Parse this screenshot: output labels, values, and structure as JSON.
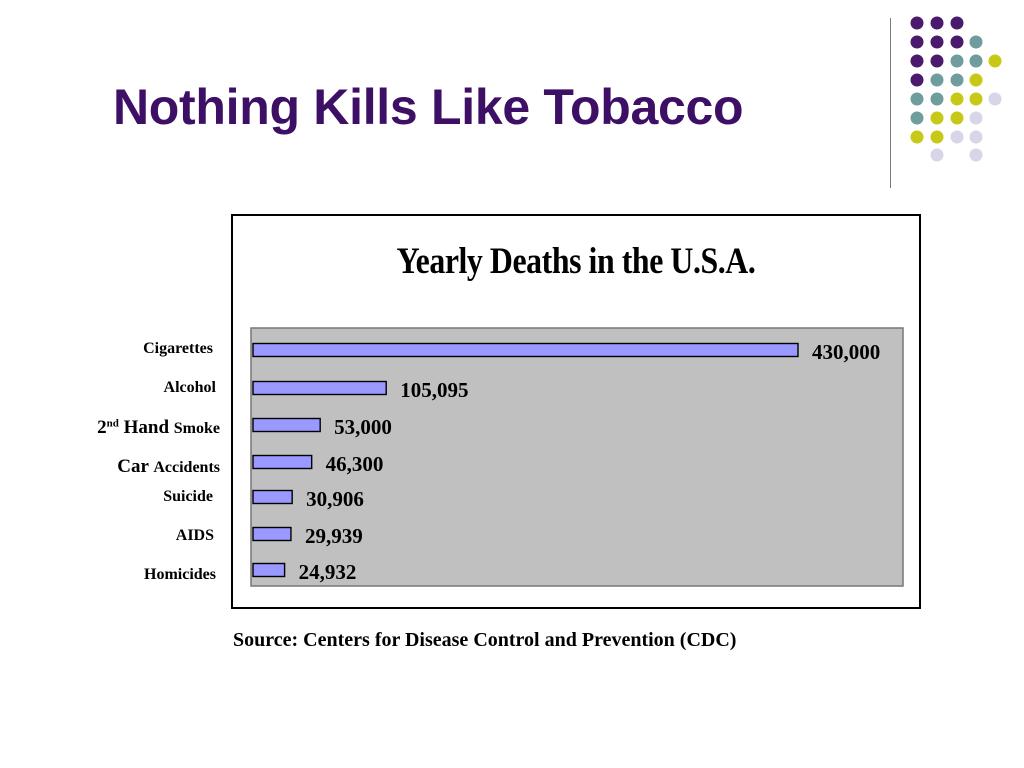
{
  "slide": {
    "title": "Nothing Kills Like Tobacco",
    "source": "Source: Centers for Disease Control and Prevention (CDC)"
  },
  "colors": {
    "title": "#3d1066",
    "plot_background": "#c0c0c0",
    "bar_fill": "#9999ff",
    "decor_dots": [
      "#4b1a6e",
      "#6f9c9c",
      "#c8c816",
      "#d6d6e8"
    ]
  },
  "chart_data": {
    "type": "bar",
    "orientation": "horizontal",
    "title": "Yearly Deaths in the U.S.A.",
    "categories": [
      {
        "pre": "",
        "sup": "",
        "main": "",
        "rest": "Cigarettes"
      },
      {
        "pre": "",
        "sup": "",
        "main": "",
        "rest": "Alcohol"
      },
      {
        "pre": "2",
        "sup": "nd",
        "main": " Hand ",
        "rest": "Smoke"
      },
      {
        "pre": "",
        "sup": "",
        "main": "Car ",
        "rest": "Accidents"
      },
      {
        "pre": "",
        "sup": "",
        "main": "",
        "rest": "Suicide"
      },
      {
        "pre": "",
        "sup": "",
        "main": "",
        "rest": "AIDS"
      },
      {
        "pre": "",
        "sup": "",
        "main": "",
        "rest": "Homicides"
      }
    ],
    "values": [
      430000,
      105095,
      53000,
      46300,
      30906,
      29939,
      24932
    ],
    "data_labels": [
      "430,000",
      "105,095",
      "53,000",
      "46,300",
      "30,906",
      "29,939",
      "24,932"
    ],
    "xlim": [
      0,
      430000
    ],
    "grid": false,
    "legend": "none"
  }
}
